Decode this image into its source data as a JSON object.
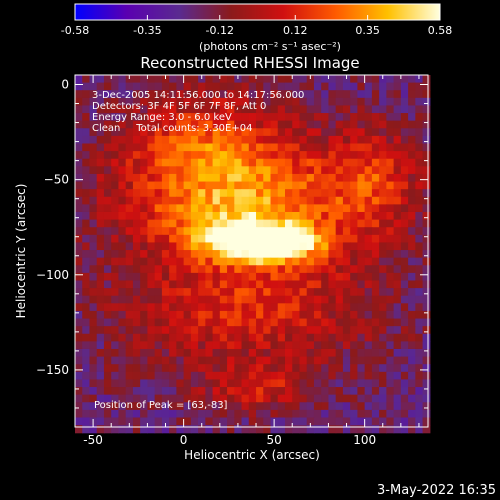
{
  "chart_data": {
    "type": "heatmap",
    "title": "Reconstructed RHESSI Image",
    "xlabel": "Heliocentric X (arcsec)",
    "ylabel": "Heliocentric Y (arcsec)",
    "xlim": [
      -60,
      135
    ],
    "ylim": [
      -180,
      5
    ],
    "xticks": [
      -50,
      0,
      50,
      100
    ],
    "yticks": [
      0,
      -50,
      -100,
      -150
    ],
    "colorbar": {
      "min": -0.58,
      "max": 0.58,
      "ticks": [
        "-0.58",
        "-0.35",
        "-0.12",
        "0.12",
        "0.35",
        "0.58"
      ],
      "tick_values": [
        -0.58,
        -0.35,
        -0.12,
        0.12,
        0.35,
        0.58
      ],
      "unit_label": "(photons cm⁻² s⁻¹ asec⁻²)",
      "colormap": [
        "#0000ff",
        "#5a00b0",
        "#5a2a90",
        "#8c1a1a",
        "#d01010",
        "#ff5a00",
        "#ffc000",
        "#ffffe0"
      ]
    },
    "annotations": [
      "3-Dec-2005 14:11:56.000 to 14:17:56.000",
      "Detectors: 3F 4F 5F 6F 7F 8F, Att 0",
      "Energy Range: 3.0 - 6.0 keV",
      "Clean     Total counts: 3.30E+04"
    ],
    "peak_label": "Position of Peak = [63,-83]",
    "peak": [
      63,
      -83
    ],
    "background_level": -0.2,
    "sources": [
      {
        "x": 42,
        "y": -83,
        "sx": 22,
        "sy": 7,
        "amp": 0.78
      },
      {
        "x": 63,
        "y": -85,
        "sx": 9,
        "sy": 5,
        "amp": 0.12
      },
      {
        "x": 25,
        "y": -70,
        "sx": 30,
        "sy": 10,
        "amp": 0.18
      },
      {
        "x": 40,
        "y": -55,
        "sx": 55,
        "sy": 22,
        "amp": 0.42
      },
      {
        "x": 35,
        "y": -115,
        "sx": 50,
        "sy": 25,
        "amp": 0.32
      },
      {
        "x": 10,
        "y": -30,
        "sx": 28,
        "sy": 20,
        "amp": 0.28
      },
      {
        "x": 40,
        "y": -160,
        "sx": 20,
        "sy": 8,
        "amp": 0.25
      },
      {
        "x": 105,
        "y": -50,
        "sx": 15,
        "sy": 20,
        "amp": 0.2
      }
    ]
  },
  "footer": {
    "timestamp": "3-May-2022 16:35"
  }
}
